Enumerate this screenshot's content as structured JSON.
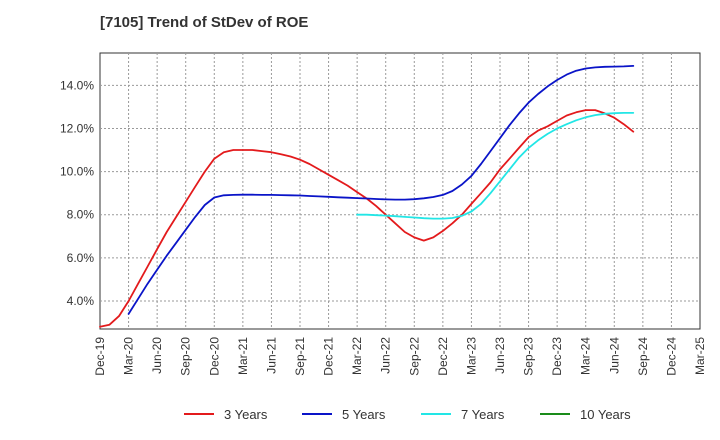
{
  "chart_data": {
    "type": "line",
    "title": "[7105]  Trend of StDev of ROE",
    "xlabel": "",
    "ylabel": "",
    "x_ticks": [
      "Dec-19",
      "Mar-20",
      "Jun-20",
      "Sep-20",
      "Dec-20",
      "Mar-21",
      "Jun-21",
      "Sep-21",
      "Dec-21",
      "Mar-22",
      "Jun-22",
      "Sep-22",
      "Dec-22",
      "Mar-23",
      "Jun-23",
      "Sep-23",
      "Dec-23",
      "Mar-24",
      "Jun-24",
      "Sep-24",
      "Dec-24",
      "Mar-25"
    ],
    "y_ticks": [
      "4.0%",
      "6.0%",
      "8.0%",
      "10.0%",
      "12.0%",
      "14.0%"
    ],
    "y_tick_values": [
      4,
      6,
      8,
      10,
      12,
      14
    ],
    "ylim": [
      2.7,
      15.5
    ],
    "grid": true,
    "legend_position": "bottom",
    "series": [
      {
        "name": "3 Years",
        "color": "#e31a1c",
        "points": [
          [
            "Dec-19",
            2.8
          ],
          [
            "Jan-20",
            2.9
          ],
          [
            "Feb-20",
            3.3
          ],
          [
            "Mar-20",
            4.0
          ],
          [
            "Apr-20",
            4.8
          ],
          [
            "May-20",
            5.6
          ],
          [
            "Jun-20",
            6.4
          ],
          [
            "Jul-20",
            7.2
          ],
          [
            "Aug-20",
            7.9
          ],
          [
            "Sep-20",
            8.6
          ],
          [
            "Oct-20",
            9.3
          ],
          [
            "Nov-20",
            10.0
          ],
          [
            "Dec-20",
            10.6
          ],
          [
            "Jan-21",
            10.9
          ],
          [
            "Feb-21",
            11.0
          ],
          [
            "Mar-21",
            11.0
          ],
          [
            "Apr-21",
            11.0
          ],
          [
            "May-21",
            10.95
          ],
          [
            "Jun-21",
            10.9
          ],
          [
            "Jul-21",
            10.8
          ],
          [
            "Aug-21",
            10.7
          ],
          [
            "Sep-21",
            10.55
          ],
          [
            "Oct-21",
            10.35
          ],
          [
            "Nov-21",
            10.1
          ],
          [
            "Dec-21",
            9.85
          ],
          [
            "Jan-22",
            9.6
          ],
          [
            "Feb-22",
            9.35
          ],
          [
            "Mar-22",
            9.05
          ],
          [
            "Apr-22",
            8.75
          ],
          [
            "May-22",
            8.4
          ],
          [
            "Jun-22",
            8.0
          ],
          [
            "Jul-22",
            7.6
          ],
          [
            "Aug-22",
            7.2
          ],
          [
            "Sep-22",
            6.95
          ],
          [
            "Oct-22",
            6.8
          ],
          [
            "Nov-22",
            6.95
          ],
          [
            "Dec-22",
            7.25
          ],
          [
            "Jan-23",
            7.6
          ],
          [
            "Feb-23",
            8.0
          ],
          [
            "Mar-23",
            8.5
          ],
          [
            "Apr-23",
            9.0
          ],
          [
            "May-23",
            9.5
          ],
          [
            "Jun-23",
            10.1
          ],
          [
            "Jul-23",
            10.6
          ],
          [
            "Aug-23",
            11.1
          ],
          [
            "Sep-23",
            11.6
          ],
          [
            "Oct-23",
            11.9
          ],
          [
            "Nov-23",
            12.1
          ],
          [
            "Dec-23",
            12.35
          ],
          [
            "Jan-24",
            12.6
          ],
          [
            "Feb-24",
            12.75
          ],
          [
            "Mar-24",
            12.85
          ],
          [
            "Apr-24",
            12.85
          ],
          [
            "May-24",
            12.7
          ],
          [
            "Jun-24",
            12.5
          ],
          [
            "Jul-24",
            12.2
          ],
          [
            "Aug-24",
            11.85
          ]
        ]
      },
      {
        "name": "5 Years",
        "color": "#0a14c8",
        "points": [
          [
            "Mar-20",
            3.4
          ],
          [
            "Apr-20",
            4.1
          ],
          [
            "May-20",
            4.8
          ],
          [
            "Jun-20",
            5.45
          ],
          [
            "Jul-20",
            6.1
          ],
          [
            "Aug-20",
            6.7
          ],
          [
            "Sep-20",
            7.3
          ],
          [
            "Oct-20",
            7.9
          ],
          [
            "Nov-20",
            8.45
          ],
          [
            "Dec-20",
            8.8
          ],
          [
            "Jan-21",
            8.9
          ],
          [
            "Feb-21",
            8.92
          ],
          [
            "Mar-21",
            8.93
          ],
          [
            "Apr-21",
            8.93
          ],
          [
            "May-21",
            8.92
          ],
          [
            "Jun-21",
            8.92
          ],
          [
            "Jul-21",
            8.91
          ],
          [
            "Aug-21",
            8.9
          ],
          [
            "Sep-21",
            8.89
          ],
          [
            "Oct-21",
            8.87
          ],
          [
            "Nov-21",
            8.85
          ],
          [
            "Dec-21",
            8.83
          ],
          [
            "Jan-22",
            8.81
          ],
          [
            "Feb-22",
            8.79
          ],
          [
            "Mar-22",
            8.77
          ],
          [
            "Apr-22",
            8.75
          ],
          [
            "May-22",
            8.73
          ],
          [
            "Jun-22",
            8.71
          ],
          [
            "Jul-22",
            8.7
          ],
          [
            "Aug-22",
            8.7
          ],
          [
            "Sep-22",
            8.72
          ],
          [
            "Oct-22",
            8.76
          ],
          [
            "Nov-22",
            8.82
          ],
          [
            "Dec-22",
            8.92
          ],
          [
            "Jan-23",
            9.1
          ],
          [
            "Feb-23",
            9.4
          ],
          [
            "Mar-23",
            9.8
          ],
          [
            "Apr-23",
            10.35
          ],
          [
            "May-23",
            10.95
          ],
          [
            "Jun-23",
            11.55
          ],
          [
            "Jul-23",
            12.15
          ],
          [
            "Aug-23",
            12.7
          ],
          [
            "Sep-23",
            13.2
          ],
          [
            "Oct-23",
            13.6
          ],
          [
            "Nov-23",
            13.95
          ],
          [
            "Dec-23",
            14.25
          ],
          [
            "Jan-24",
            14.5
          ],
          [
            "Feb-24",
            14.68
          ],
          [
            "Mar-24",
            14.78
          ],
          [
            "Apr-24",
            14.83
          ],
          [
            "May-24",
            14.86
          ],
          [
            "Jun-24",
            14.87
          ],
          [
            "Jul-24",
            14.88
          ],
          [
            "Aug-24",
            14.9
          ]
        ]
      },
      {
        "name": "7 Years",
        "color": "#22e6e6",
        "points": [
          [
            "Mar-22",
            8.0
          ],
          [
            "Apr-22",
            8.0
          ],
          [
            "May-22",
            7.98
          ],
          [
            "Jun-22",
            7.96
          ],
          [
            "Jul-22",
            7.93
          ],
          [
            "Aug-22",
            7.9
          ],
          [
            "Sep-22",
            7.87
          ],
          [
            "Oct-22",
            7.84
          ],
          [
            "Nov-22",
            7.82
          ],
          [
            "Dec-22",
            7.82
          ],
          [
            "Jan-23",
            7.85
          ],
          [
            "Feb-23",
            7.95
          ],
          [
            "Mar-23",
            8.15
          ],
          [
            "Apr-23",
            8.5
          ],
          [
            "May-23",
            9.0
          ],
          [
            "Jun-23",
            9.55
          ],
          [
            "Jul-23",
            10.1
          ],
          [
            "Aug-23",
            10.65
          ],
          [
            "Sep-23",
            11.1
          ],
          [
            "Oct-23",
            11.45
          ],
          [
            "Nov-23",
            11.75
          ],
          [
            "Dec-23",
            12.0
          ],
          [
            "Jan-24",
            12.2
          ],
          [
            "Feb-24",
            12.38
          ],
          [
            "Mar-24",
            12.52
          ],
          [
            "Apr-24",
            12.62
          ],
          [
            "May-24",
            12.68
          ],
          [
            "Jun-24",
            12.71
          ],
          [
            "Jul-24",
            12.72
          ],
          [
            "Aug-24",
            12.72
          ]
        ]
      },
      {
        "name": "10 Years",
        "color": "#1a8c1a",
        "points": []
      }
    ]
  }
}
